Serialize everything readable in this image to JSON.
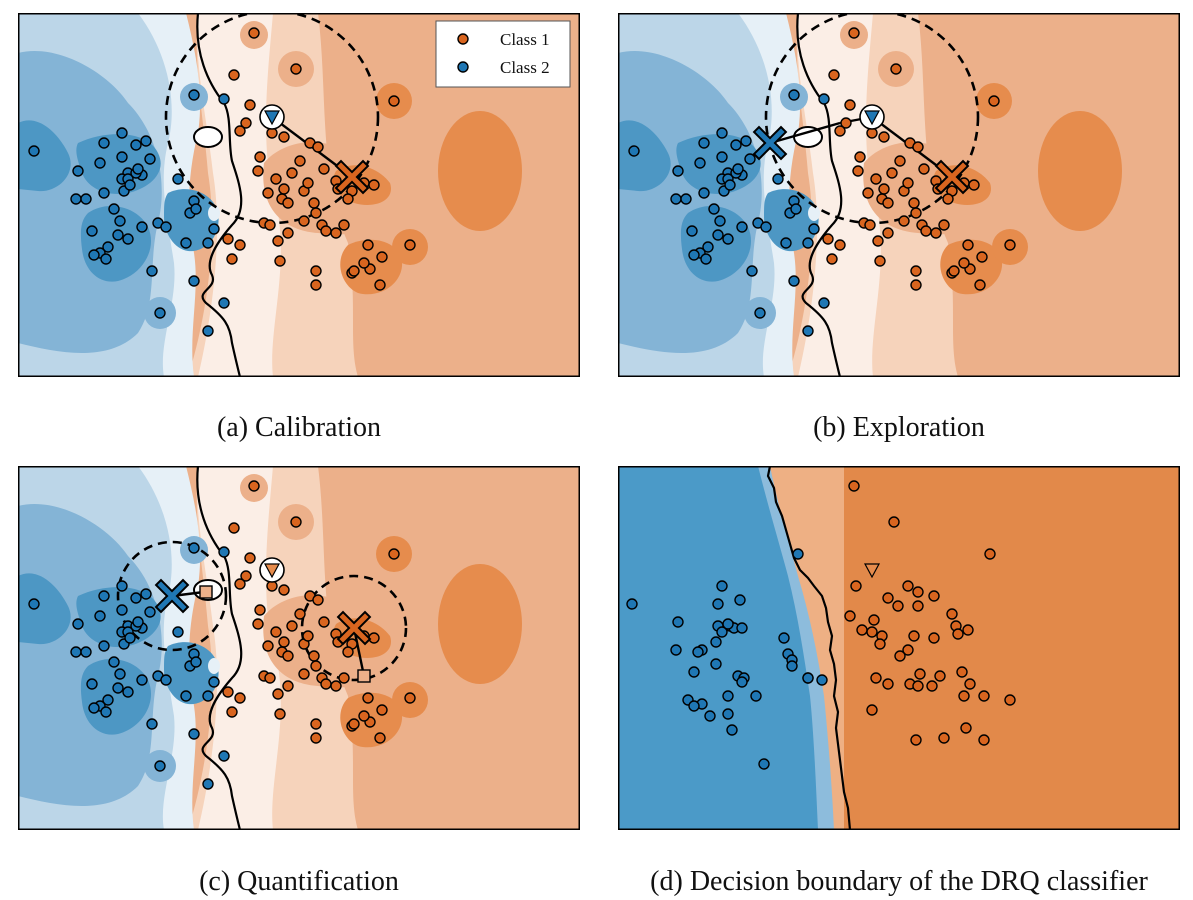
{
  "colors": {
    "class1": "#d9651f",
    "class2": "#1f77b4",
    "orange_levels": [
      "#fbeee6",
      "#f6d3bb",
      "#ecb08a",
      "#e68c4d"
    ],
    "blue_levels": [
      "#e6f0f7",
      "#bcd6e8",
      "#84b4d6",
      "#4d97c4"
    ],
    "decision_blue": "#4b9ac8",
    "decision_blue_light": "#8dbcdc",
    "decision_orange": "#e2894a",
    "decision_orange_light": "#eeb084"
  },
  "legend": {
    "class1": "Class 1",
    "class2": "Class 2"
  },
  "panels": [
    {
      "key": "a",
      "caption": "(a) Calibration"
    },
    {
      "key": "b",
      "caption": "(b) Exploration"
    },
    {
      "key": "c",
      "caption": "(c) Quantification"
    },
    {
      "key": "d",
      "caption": "(d) Decision boundary of the DRQ classifier"
    }
  ],
  "markers": {
    "test_point": "triangle-down",
    "prototype": "x-cross",
    "counterfactual": "square"
  }
}
